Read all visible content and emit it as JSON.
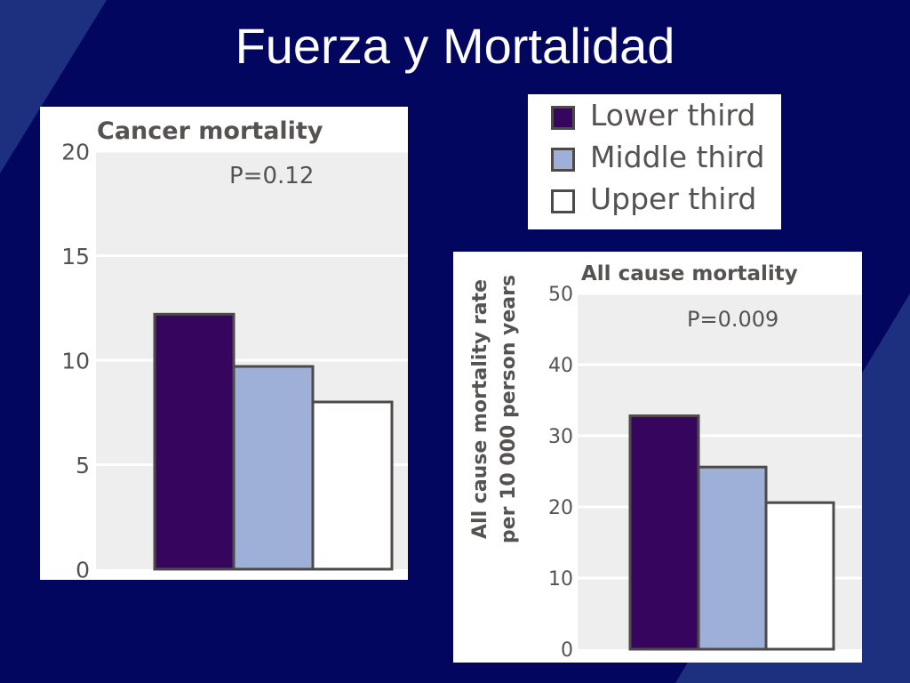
{
  "slide": {
    "title": "Fuerza y Mortalidad"
  },
  "colors": {
    "background": "#02065f",
    "accent_stripe": "#1d2f7f",
    "plot_bg": "#efeeee",
    "bar_outline": "#4f4a4a",
    "lower_third": "#36065e",
    "middle_third": "#9eb0d8",
    "upper_third": "#ffffff"
  },
  "legend": {
    "items": [
      {
        "label": "Lower third",
        "color": "#36065e"
      },
      {
        "label": "Middle third",
        "color": "#9eb0d8"
      },
      {
        "label": "Upper third",
        "color": "#ffffff"
      }
    ]
  },
  "chart_data": [
    {
      "type": "bar",
      "title": "Cancer mortality",
      "annotation": "P=0.12",
      "xlabel": "",
      "ylabel": "",
      "ylim": [
        0,
        20
      ],
      "yticks": [
        0,
        5,
        10,
        15,
        20
      ],
      "grid": true,
      "categories": [
        "Lower third",
        "Middle third",
        "Upper third"
      ],
      "values": [
        12.2,
        9.7,
        8.0
      ]
    },
    {
      "type": "bar",
      "title": "All cause mortality",
      "annotation": "P=0.009",
      "xlabel": "",
      "ylabel": "All cause mortality rate per 10 000 person years",
      "ylabel_lines": [
        "All cause mortality rate",
        "per 10 000 person years"
      ],
      "ylim": [
        0,
        50
      ],
      "yticks": [
        0,
        10,
        20,
        30,
        40,
        50
      ],
      "grid": true,
      "categories": [
        "Lower third",
        "Middle third",
        "Upper third"
      ],
      "values": [
        32.8,
        25.6,
        20.6
      ]
    }
  ]
}
